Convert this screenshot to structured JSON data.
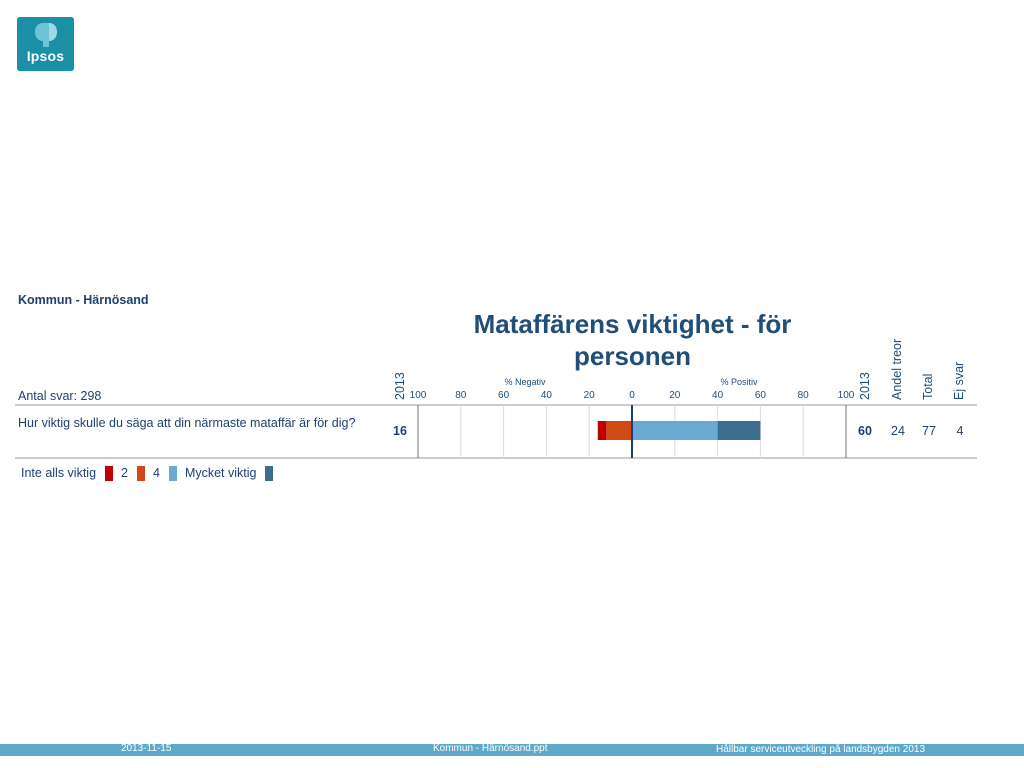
{
  "logo": {
    "text": "Ipsos"
  },
  "header": {
    "subtitle": "Kommun - Härnösand",
    "antal": "Antal svar: 298"
  },
  "columns": {
    "year_left": "2013",
    "year_right": "2013",
    "andel": "Andel treor",
    "total": "Total",
    "ej_svar": "Ej svar"
  },
  "row": {
    "question": "Hur viktig skulle du säga att din närmaste mataffär är för dig?",
    "negative_2013": "16",
    "positive_2013": "60",
    "andel_treor": "24",
    "total": "77",
    "ej_svar": "4"
  },
  "legend": {
    "items": [
      {
        "label": "Inte alls viktig",
        "color": "#c00000"
      },
      {
        "label": "2",
        "color": "#d04a16"
      },
      {
        "label": "4",
        "color": "#6aaad2"
      },
      {
        "label": "Mycket viktig",
        "color": "#3b6e8c"
      }
    ]
  },
  "footer": {
    "date": "2013-11-15",
    "file": "Kommun - Härnösand.ppt",
    "project": "Hållbar serviceutveckling på landsbygden 2013"
  },
  "chart_data": {
    "type": "bar",
    "title": "Mataffärens viktighet - för personen",
    "xlabel_negative": "% Negativ",
    "xlabel_positive": "% Positiv",
    "negative_ticks": [
      "100",
      "80",
      "60",
      "40",
      "20"
    ],
    "zero_tick": "0",
    "positive_ticks": [
      "20",
      "40",
      "60",
      "80",
      "100"
    ],
    "xlim": [
      -100,
      100
    ],
    "categories": [
      "Hur viktig skulle du säga att din närmaste mataffär är för dig?"
    ],
    "series": [
      {
        "name": "Inte alls viktig",
        "values": [
          -4
        ],
        "color": "#c00000"
      },
      {
        "name": "2",
        "values": [
          -12
        ],
        "color": "#d04a16"
      },
      {
        "name": "4",
        "values": [
          40
        ],
        "color": "#6aaad2"
      },
      {
        "name": "Mycket viktig",
        "values": [
          20
        ],
        "color": "#3b6e8c"
      }
    ],
    "grid": true
  }
}
